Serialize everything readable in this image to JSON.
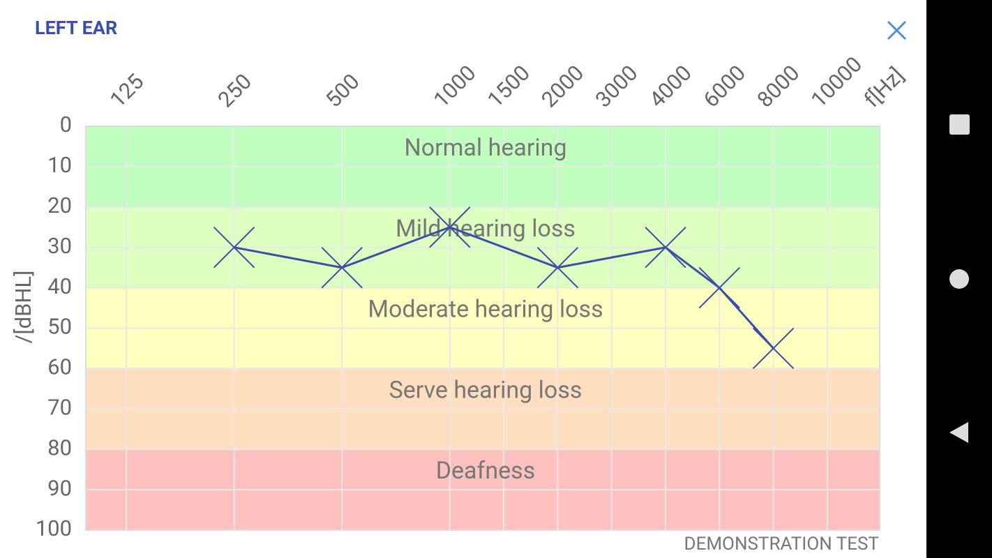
{
  "header": {
    "title": "LEFT EAR"
  },
  "chart_data": {
    "type": "line",
    "categories": [
      "125",
      "250",
      "500",
      "1000",
      "1500",
      "2000",
      "3000",
      "4000",
      "6000",
      "8000",
      "10000"
    ],
    "x_label": "f[Hz]",
    "y_label": "/[dBHL]",
    "ylim": [
      0,
      100
    ],
    "yticks": [
      0,
      10,
      20,
      30,
      40,
      50,
      60,
      70,
      80,
      90,
      100
    ],
    "y_inverted": true,
    "grid": true,
    "bands": [
      {
        "label": "Normal hearing",
        "from": 0,
        "to": 20,
        "color": "#c0ffc0"
      },
      {
        "label": "Mild hearing loss",
        "from": 20,
        "to": 40,
        "color": "#ddffc0"
      },
      {
        "label": "Moderate hearing loss",
        "from": 40,
        "to": 60,
        "color": "#ffffc0"
      },
      {
        "label": "Serve hearing loss",
        "from": 60,
        "to": 80,
        "color": "#ffdfc0"
      },
      {
        "label": "Deafness",
        "from": 80,
        "to": 100,
        "color": "#ffc0c0"
      }
    ],
    "series": [
      {
        "color": "#3a4fa8",
        "x": [
          "250",
          "500",
          "1000",
          "2000",
          "4000",
          "6000",
          "8000"
        ],
        "values": [
          30,
          35,
          25,
          35,
          30,
          40,
          55
        ]
      }
    ]
  },
  "footer": {
    "note": "DEMONSTRATION TEST"
  }
}
